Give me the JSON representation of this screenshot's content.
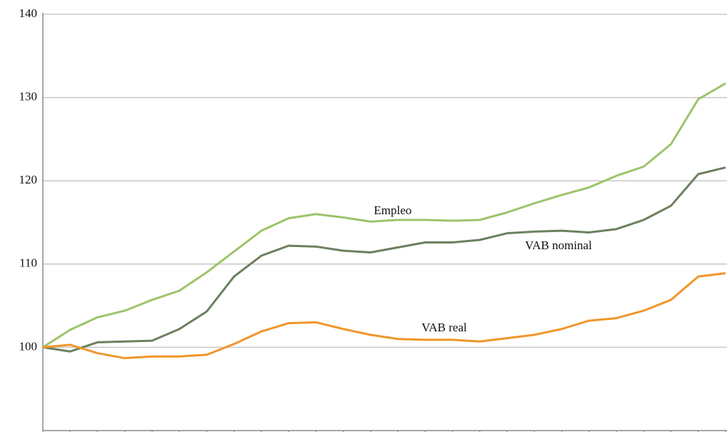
{
  "chart_data": {
    "type": "line",
    "categories": [
      null,
      null,
      null,
      null,
      null,
      null,
      null,
      null,
      null,
      null,
      null,
      null,
      null,
      null,
      null,
      null,
      null,
      null,
      null,
      null,
      null,
      null,
      null,
      null,
      null,
      null
    ],
    "series": [
      {
        "name": "Empleo",
        "color": "#9dc36b",
        "values": [
          100,
          102.1,
          103.6,
          104.4,
          105.7,
          106.8,
          109,
          111.5,
          114,
          115.5,
          116,
          115.6,
          115.1,
          115.3,
          115.3,
          115.2,
          115.3,
          116.2,
          117.3,
          118.3,
          119.2,
          120.6,
          121.7,
          124.4,
          129.8,
          131.7
        ]
      },
      {
        "name": "VAB nominal",
        "color": "#6b8060",
        "values": [
          100,
          99.5,
          100.6,
          100.7,
          100.8,
          102.2,
          104.3,
          108.5,
          111,
          112.2,
          112.1,
          111.6,
          111.4,
          112,
          112.6,
          112.6,
          112.9,
          113.7,
          113.9,
          114,
          113.8,
          114.2,
          115.3,
          117,
          120.8,
          121.6
        ]
      },
      {
        "name": "VAB real",
        "color": "#f0962a",
        "values": [
          100,
          100.3,
          99.3,
          98.7,
          98.9,
          98.9,
          99.1,
          100.4,
          101.9,
          102.9,
          103,
          102.2,
          101.5,
          101,
          100.9,
          100.9,
          100.7,
          101.1,
          101.5,
          102.2,
          103.2,
          103.5,
          104.4,
          105.7,
          108.5,
          108.9
        ]
      }
    ],
    "ylim": [
      90,
      140
    ],
    "yticks": [
      100,
      110,
      120,
      130,
      140
    ],
    "grid": true
  }
}
